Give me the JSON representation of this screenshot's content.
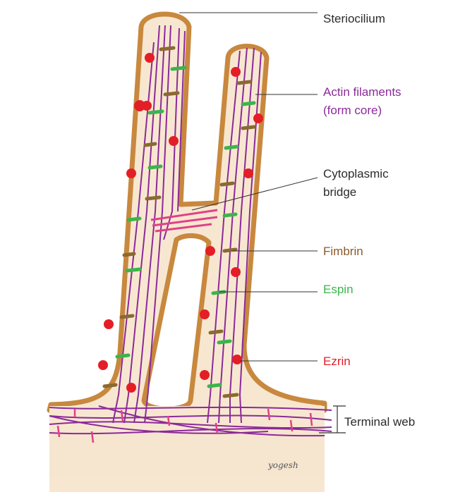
{
  "labels": {
    "stereocilium": "Steriocilium",
    "actin_line1": "Actin filaments",
    "actin_line2": "(form core)",
    "bridge_line1": "Cytoplasmic",
    "bridge_line2": "bridge",
    "fimbrin": "Fimbrin",
    "espin": "Espin",
    "ezrin": "Ezrin",
    "terminal_web": "Terminal web",
    "signature": "yogesh"
  },
  "colors": {
    "cell_fill": "#f8e7d0",
    "membrane": "#c8883e",
    "actin": "#8b2a9a",
    "fimbrin": "#8a6a2f",
    "espin": "#3bb54a",
    "ezrin": "#e41e26",
    "bridge": "#e0408a",
    "label_dark": "#2b2b2b",
    "label_actin": "#8b2a9a",
    "label_fimbrin": "#8a5a2b",
    "label_espin": "#3bb54a",
    "label_ezrin": "#e41e26"
  }
}
